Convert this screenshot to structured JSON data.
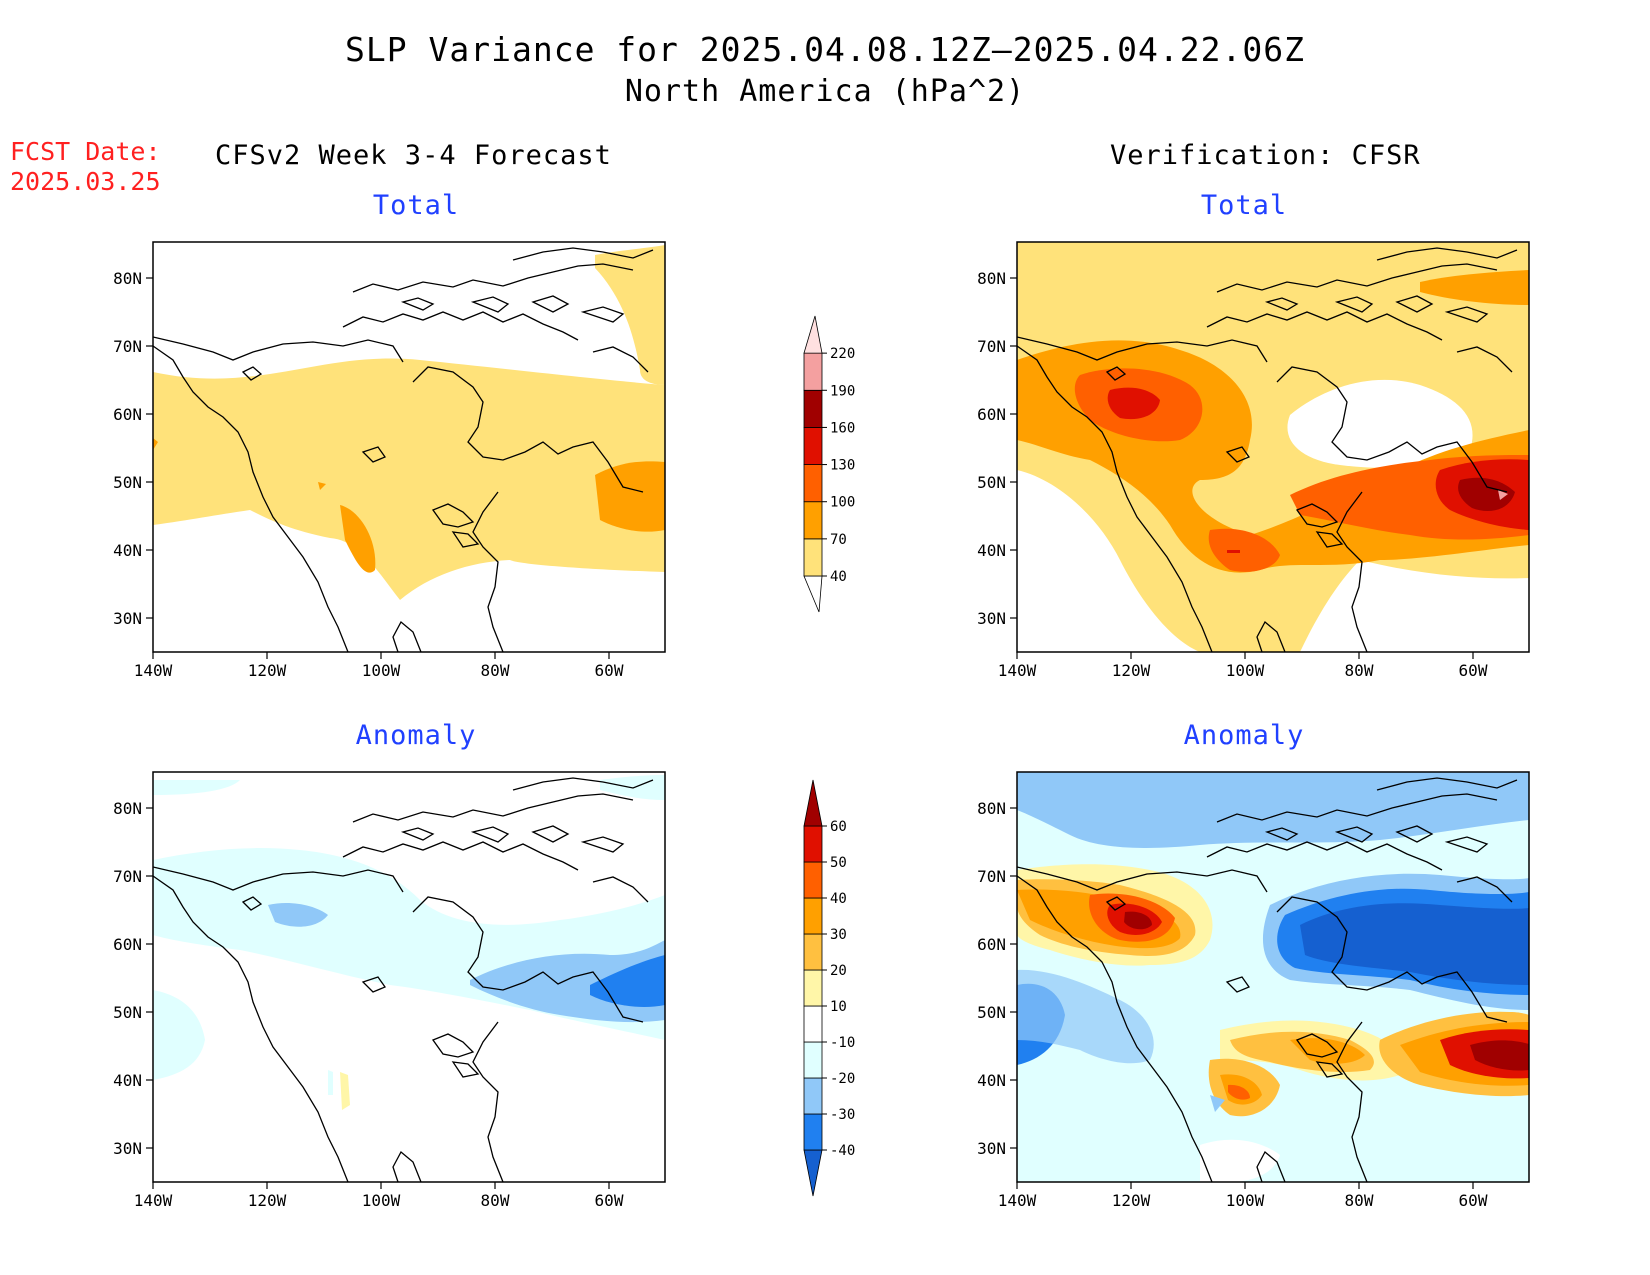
{
  "header": {
    "title": "SLP Variance for 2025.04.08.12Z—2025.04.22.06Z",
    "subtitle": "North America (hPa^2)"
  },
  "forecast_date": {
    "label": "FCST Date:",
    "value": "2025.03.25"
  },
  "columns": {
    "left": "CFSv2 Week 3-4 Forecast",
    "right": "Verification: CFSR"
  },
  "panels": {
    "total_label": "Total",
    "anomaly_label": "Anomaly"
  },
  "map_axes": {
    "lat_labels": [
      "80N",
      "70N",
      "60N",
      "50N",
      "40N",
      "30N"
    ],
    "lon_labels": [
      "140W",
      "120W",
      "100W",
      "80W",
      "60W"
    ]
  },
  "legend_total": {
    "levels": [
      "40",
      "70",
      "100",
      "130",
      "160",
      "190",
      "220"
    ],
    "colors": [
      "#ffe27a",
      "#ffa000",
      "#ff6000",
      "#e01000",
      "#a00000",
      "#f4a0a0",
      "#ffe0e0"
    ]
  },
  "legend_anomaly": {
    "levels": [
      "-40",
      "-30",
      "-20",
      "-10",
      "10",
      "20",
      "30",
      "40",
      "50",
      "60"
    ],
    "colors": [
      "#1560d0",
      "#2080f0",
      "#90c8f8",
      "#e0ffff",
      "#ffffff",
      "#fff6a8",
      "#ffc040",
      "#ffa000",
      "#ff6000",
      "#e01000",
      "#a00000"
    ]
  }
}
